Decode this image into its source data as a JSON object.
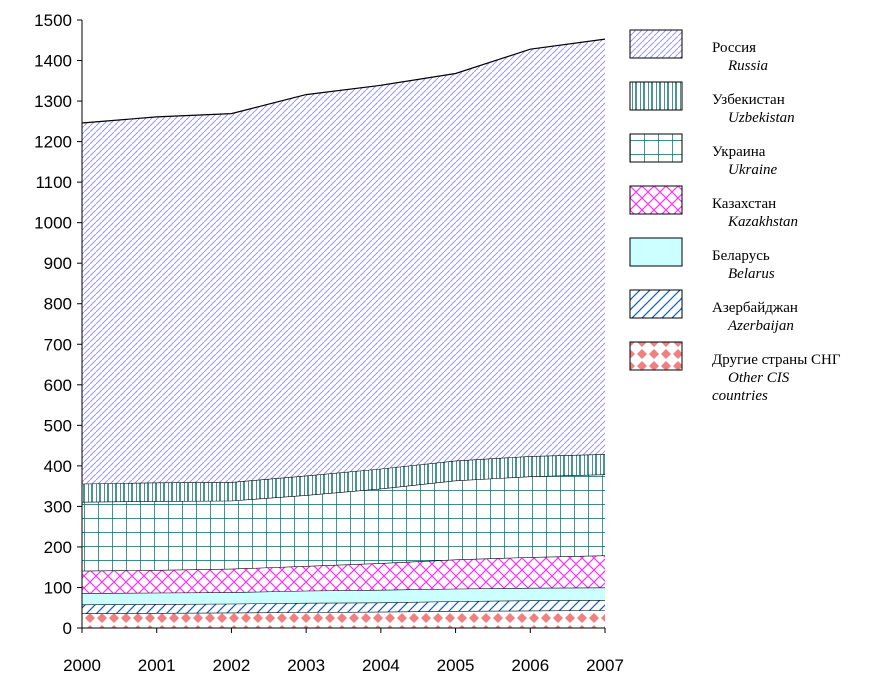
{
  "chart_data": {
    "type": "area",
    "stacked": true,
    "x": [
      2000,
      2001,
      2002,
      2003,
      2004,
      2005,
      2006,
      2007
    ],
    "ylim": [
      0,
      1500
    ],
    "yticks": [
      0,
      100,
      200,
      300,
      400,
      500,
      600,
      700,
      800,
      900,
      1000,
      1100,
      1200,
      1300,
      1400,
      1500
    ],
    "grid": false,
    "legend_position": "right",
    "series": [
      {
        "name": "Другие страны СНГ",
        "name_en": "Other CIS countries",
        "pattern": "diamonds",
        "color": "#f08080",
        "values": [
          36,
          37,
          38,
          39,
          40,
          42,
          43,
          44
        ]
      },
      {
        "name": "Азербайджан",
        "name_en": "Azerbaijan",
        "pattern": "diag-cross",
        "color": "#1060c0",
        "values": [
          22,
          22,
          22,
          23,
          23,
          24,
          25,
          25
        ]
      },
      {
        "name": "Беларусь",
        "name_en": "Belarus",
        "pattern": "solid",
        "color": "#ccffff",
        "values": [
          28,
          28,
          28,
          30,
          31,
          31,
          31,
          31
        ]
      },
      {
        "name": "Казахстан",
        "name_en": "Kazakhstan",
        "pattern": "diamond-grid",
        "color": "#ff33ff",
        "values": [
          55,
          56,
          58,
          61,
          66,
          72,
          76,
          79
        ]
      },
      {
        "name": "Украина",
        "name_en": "Ukraine",
        "pattern": "grid",
        "color": "#006666",
        "values": [
          170,
          170,
          168,
          175,
          184,
          195,
          199,
          200
        ]
      },
      {
        "name": "Узбекистан",
        "name_en": "Uzbekistan",
        "pattern": "vertical",
        "color": "#006666",
        "values": [
          45,
          46,
          46,
          48,
          49,
          49,
          50,
          50
        ]
      },
      {
        "name": "Россия",
        "name_en": "Russia",
        "pattern": "diag-light",
        "color": "#9999ff",
        "values": [
          890,
          902,
          909,
          940,
          946,
          955,
          1004,
          1024
        ]
      }
    ]
  }
}
